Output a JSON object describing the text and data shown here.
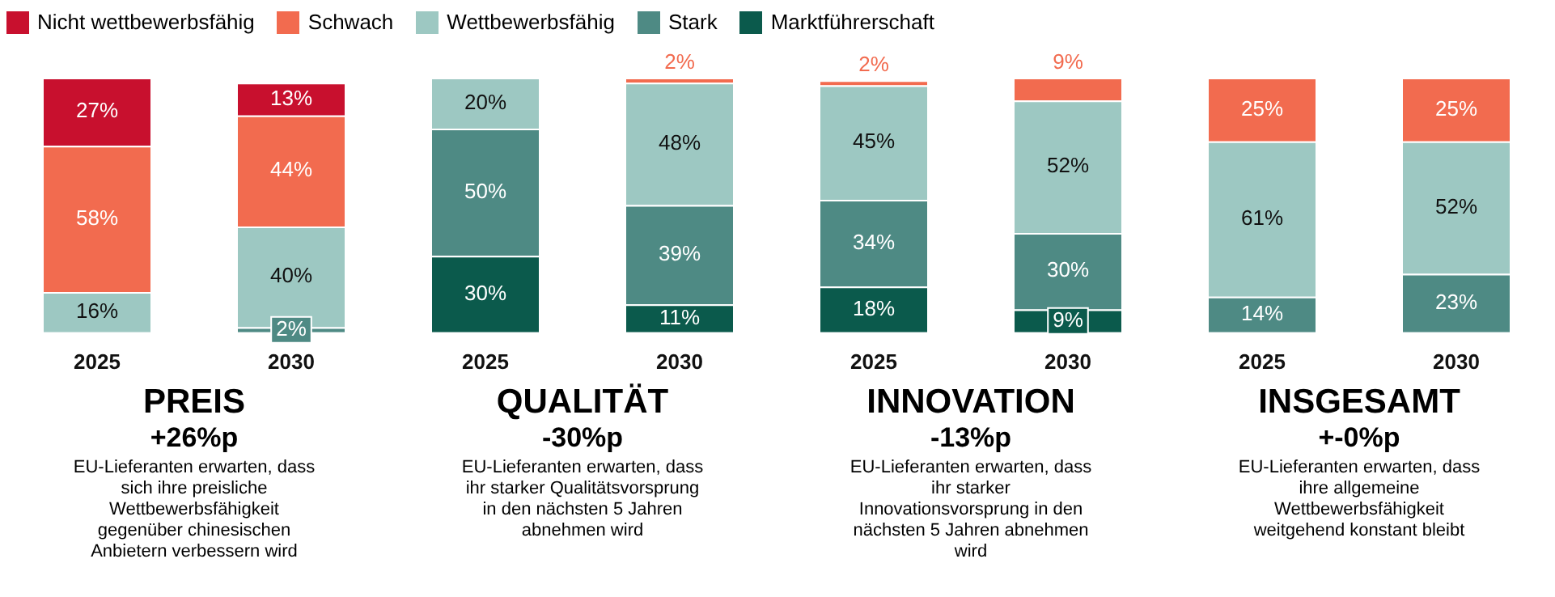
{
  "chart_data": [
    {
      "type": "bar",
      "stacked": true,
      "legend": "top right",
      "title": "PREIS",
      "subtitle": "+26%p",
      "annotations": [
        "EU-Lieferanten erwarten, dass sich ihre preisliche Wettbewerbsfähigkeit gegenüber chinesischen Anbietern verbessern wird"
      ],
      "categories": [
        "2025",
        "2030"
      ],
      "series": [
        {
          "name": "Marktführerschaft",
          "color": "#0b5a4c",
          "values": [
            null,
            null
          ],
          "value_labels": [
            null,
            null
          ]
        },
        {
          "name": "Stark",
          "color": "#4e8a84",
          "values": [
            null,
            2
          ],
          "value_labels": [
            null,
            "2%"
          ]
        },
        {
          "name": "Wettbewerbsfähig",
          "color": "#9dc8c2",
          "values": [
            16,
            40
          ],
          "value_labels": [
            "16%",
            "40%"
          ]
        },
        {
          "name": "Schwach",
          "color": "#f26b4f",
          "values": [
            58,
            44
          ],
          "value_labels": [
            "58%",
            "44%"
          ]
        },
        {
          "name": "Nicht wettbewerbsfähig",
          "color": "#c8102e",
          "values": [
            27,
            13
          ],
          "value_labels": [
            "27%",
            "13%"
          ]
        }
      ]
    },
    {
      "type": "bar",
      "stacked": true,
      "title": "QUALITÄT",
      "subtitle": "-30%p",
      "annotations": [
        "EU-Lieferanten erwarten, dass ihr starker Qualitätsvorsprung in den nächsten 5 Jahren abnehmen wird"
      ],
      "categories": [
        "2025",
        "2030"
      ],
      "series": [
        {
          "color": "#0b5a4c",
          "values": [
            30,
            11
          ],
          "value_labels": [
            "30%",
            "11%"
          ]
        },
        {
          "color": "#4e8a84",
          "values": [
            50,
            39
          ],
          "value_labels": [
            "50%",
            "39%"
          ]
        },
        {
          "color": "#9dc8c2",
          "values": [
            20,
            48
          ],
          "value_labels": [
            "20%",
            "48%"
          ]
        },
        {
          "color": "#f26b4f",
          "values": [
            null,
            2
          ],
          "value_labels": [
            null,
            "2%"
          ]
        }
      ]
    },
    {
      "type": "bar",
      "stacked": true,
      "title": "INNOVATION",
      "subtitle": "-13%p",
      "annotations": [
        "EU-Lieferanten erwarten, dass ihr starker Innovationsvorsprung in den nächsten 5 Jahren abnehmen wird"
      ],
      "categories": [
        "2025",
        "2030"
      ],
      "series": [
        {
          "color": "#0b5a4c",
          "values": [
            18,
            9
          ],
          "value_labels": [
            "18%",
            "9%"
          ]
        },
        {
          "color": "#4e8a84",
          "values": [
            34,
            30
          ],
          "value_labels": [
            "34%",
            "30%"
          ]
        },
        {
          "color": "#9dc8c2",
          "values": [
            45,
            52
          ],
          "value_labels": [
            "45%",
            "52%"
          ]
        },
        {
          "color": "#f26b4f",
          "values": [
            2,
            9
          ],
          "value_labels": [
            "2%",
            "9%"
          ]
        }
      ]
    },
    {
      "type": "bar",
      "stacked": true,
      "title": "INSGESAMT",
      "subtitle": "+-0%p",
      "annotations": [
        "EU-Lieferanten erwarten, dass ihre allgemeine Wettbewerbsfähigkeit weitgehend konstant bleibt"
      ],
      "categories": [
        "2025",
        "2030"
      ],
      "series": [
        {
          "color": "#4e8a84",
          "values": [
            14,
            23
          ],
          "value_labels": [
            "14%",
            "23%"
          ]
        },
        {
          "color": "#9dc8c2",
          "values": [
            61,
            52
          ],
          "value_labels": [
            "61%",
            "52%"
          ]
        },
        {
          "color": "#f26b4f",
          "values": [
            25,
            25
          ],
          "value_labels": [
            "25%",
            "25%"
          ]
        }
      ]
    }
  ]
}
